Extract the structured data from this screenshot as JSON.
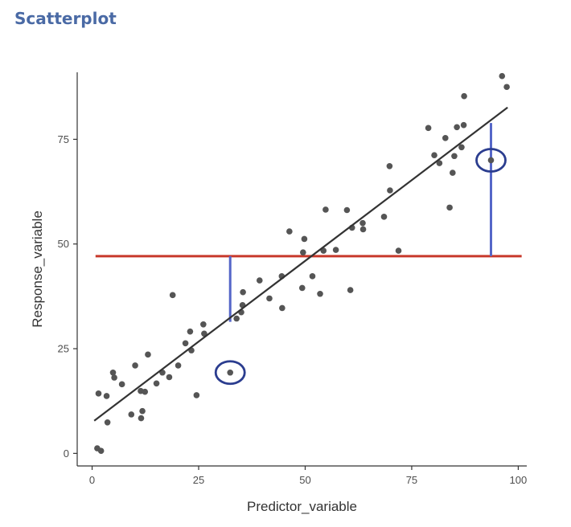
{
  "header": {
    "title": "Scatterplot"
  },
  "colors": {
    "points": "#555555",
    "fit_line": "#333333",
    "mean_line": "#c8392b",
    "residual": "#5566c8",
    "highlight": "#2b3d8f"
  },
  "chart_data": {
    "type": "scatter",
    "title": "",
    "xlabel": "Predictor_variable",
    "ylabel": "Response_variable",
    "xlim": [
      -3.5,
      102
    ],
    "ylim": [
      -3,
      91
    ],
    "xticks": [
      0,
      25,
      50,
      75,
      100
    ],
    "yticks": [
      0,
      25,
      50,
      75
    ],
    "grid": false,
    "points": [
      {
        "x": 1.2,
        "y": 1.2
      },
      {
        "x": 2.1,
        "y": 0.6
      },
      {
        "x": 1.5,
        "y": 14.3
      },
      {
        "x": 3.4,
        "y": 13.7
      },
      {
        "x": 3.6,
        "y": 7.4
      },
      {
        "x": 4.9,
        "y": 19.3
      },
      {
        "x": 5.2,
        "y": 18.1
      },
      {
        "x": 7.0,
        "y": 16.5
      },
      {
        "x": 9.2,
        "y": 9.3
      },
      {
        "x": 10.1,
        "y": 21.0
      },
      {
        "x": 11.4,
        "y": 14.9
      },
      {
        "x": 11.5,
        "y": 8.4
      },
      {
        "x": 11.8,
        "y": 10.1
      },
      {
        "x": 12.4,
        "y": 14.7
      },
      {
        "x": 13.1,
        "y": 23.6
      },
      {
        "x": 15.1,
        "y": 16.7
      },
      {
        "x": 16.5,
        "y": 19.3
      },
      {
        "x": 18.1,
        "y": 18.2
      },
      {
        "x": 18.9,
        "y": 37.8
      },
      {
        "x": 20.2,
        "y": 21.0
      },
      {
        "x": 21.9,
        "y": 26.3
      },
      {
        "x": 23.0,
        "y": 29.1
      },
      {
        "x": 23.3,
        "y": 24.6
      },
      {
        "x": 24.5,
        "y": 13.9
      },
      {
        "x": 26.1,
        "y": 30.8
      },
      {
        "x": 26.3,
        "y": 28.6
      },
      {
        "x": 32.4,
        "y": 19.3
      },
      {
        "x": 33.9,
        "y": 32.2
      },
      {
        "x": 35.0,
        "y": 33.7
      },
      {
        "x": 35.3,
        "y": 35.4
      },
      {
        "x": 35.4,
        "y": 38.5
      },
      {
        "x": 39.3,
        "y": 41.3
      },
      {
        "x": 41.6,
        "y": 37.0
      },
      {
        "x": 44.5,
        "y": 42.3
      },
      {
        "x": 44.6,
        "y": 34.7
      },
      {
        "x": 46.3,
        "y": 53.0
      },
      {
        "x": 49.3,
        "y": 39.5
      },
      {
        "x": 49.5,
        "y": 48.0
      },
      {
        "x": 49.8,
        "y": 51.2
      },
      {
        "x": 51.7,
        "y": 42.3
      },
      {
        "x": 53.5,
        "y": 38.1
      },
      {
        "x": 54.3,
        "y": 48.4
      },
      {
        "x": 54.8,
        "y": 58.2
      },
      {
        "x": 57.2,
        "y": 48.6
      },
      {
        "x": 59.8,
        "y": 58.1
      },
      {
        "x": 60.6,
        "y": 39.0
      },
      {
        "x": 61.0,
        "y": 53.9
      },
      {
        "x": 63.5,
        "y": 55.0
      },
      {
        "x": 63.6,
        "y": 53.5
      },
      {
        "x": 68.5,
        "y": 56.5
      },
      {
        "x": 69.8,
        "y": 68.6
      },
      {
        "x": 69.9,
        "y": 62.8
      },
      {
        "x": 71.9,
        "y": 48.4
      },
      {
        "x": 78.9,
        "y": 77.7
      },
      {
        "x": 80.3,
        "y": 71.2
      },
      {
        "x": 81.5,
        "y": 69.3
      },
      {
        "x": 82.9,
        "y": 75.3
      },
      {
        "x": 83.9,
        "y": 58.7
      },
      {
        "x": 84.6,
        "y": 67.0
      },
      {
        "x": 85.0,
        "y": 71.0
      },
      {
        "x": 85.6,
        "y": 77.9
      },
      {
        "x": 86.7,
        "y": 73.1
      },
      {
        "x": 87.2,
        "y": 78.4
      },
      {
        "x": 87.3,
        "y": 85.3
      },
      {
        "x": 93.6,
        "y": 70.0
      },
      {
        "x": 96.2,
        "y": 90.1
      },
      {
        "x": 97.3,
        "y": 87.5
      }
    ],
    "regression_line": {
      "x": [
        0.5,
        97.5
      ],
      "y": [
        7.8,
        82.6
      ]
    },
    "mean_line": {
      "y": 47.1,
      "x": [
        0.8,
        100.8
      ]
    },
    "residuals": [
      {
        "x": 32.4,
        "y_from": 31.4,
        "y_to": 47.1
      },
      {
        "x": 93.6,
        "y_from": 47.1,
        "y_to": 78.9
      }
    ],
    "highlighted_points": [
      {
        "x": 32.4,
        "y": 19.3
      },
      {
        "x": 93.6,
        "y": 70.0
      }
    ]
  }
}
